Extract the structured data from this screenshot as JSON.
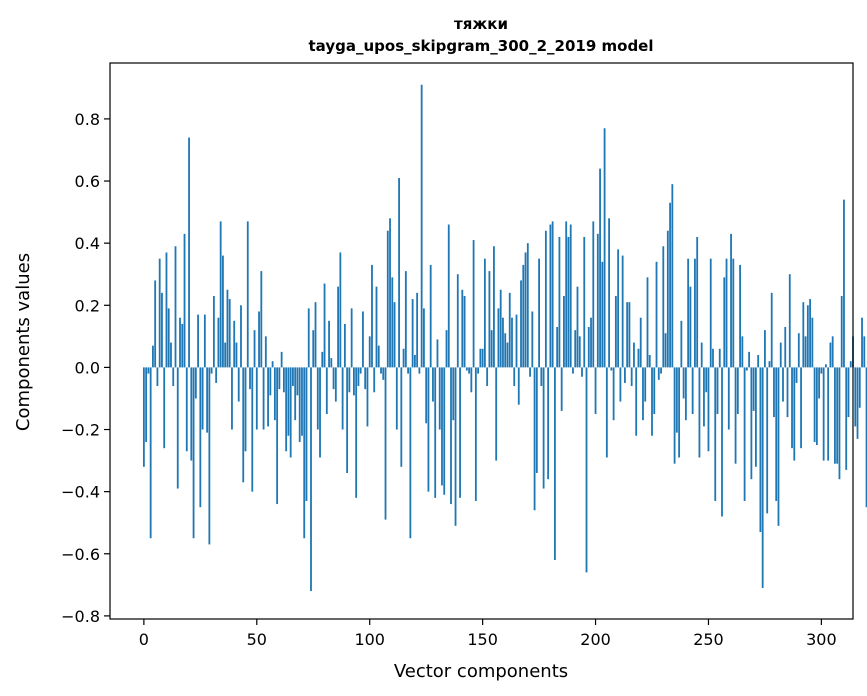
{
  "chart_data": {
    "type": "bar",
    "title": "тяжки",
    "subtitle": "tayga_upos_skipgram_300_2_2019 model",
    "xlabel": "Vector components",
    "ylabel": "Components values",
    "xlim": [
      -15,
      314
    ],
    "ylim": [
      -0.81,
      0.98
    ],
    "xticks": [
      0,
      50,
      100,
      150,
      200,
      250,
      300
    ],
    "yticks": [
      -0.8,
      -0.6,
      -0.4,
      -0.2,
      0.0,
      0.2,
      0.4,
      0.6,
      0.8
    ],
    "xtick_labels": [
      "0",
      "50",
      "100",
      "150",
      "200",
      "250",
      "300"
    ],
    "ytick_labels": [
      "−0.8",
      "−0.6",
      "−0.4",
      "−0.2",
      "0.0",
      "0.2",
      "0.4",
      "0.6",
      "0.8"
    ],
    "grid": false,
    "color": "#1f77b4",
    "values": [
      -0.32,
      -0.24,
      -0.02,
      -0.55,
      0.07,
      0.28,
      -0.06,
      0.35,
      0.24,
      -0.26,
      0.37,
      0.19,
      0.08,
      -0.06,
      0.39,
      -0.39,
      0.16,
      0.14,
      0.43,
      -0.27,
      0.74,
      -0.3,
      -0.55,
      -0.1,
      0.17,
      -0.45,
      -0.2,
      0.17,
      -0.21,
      -0.57,
      -0.02,
      0.23,
      -0.05,
      0.16,
      0.47,
      0.36,
      0.08,
      0.25,
      0.22,
      -0.2,
      0.15,
      0.08,
      -0.11,
      0.2,
      -0.37,
      -0.27,
      0.47,
      -0.07,
      -0.4,
      0.12,
      -0.2,
      0.18,
      0.31,
      -0.2,
      0.1,
      -0.19,
      -0.09,
      0.02,
      -0.17,
      -0.44,
      -0.07,
      0.05,
      -0.08,
      -0.27,
      -0.22,
      -0.29,
      -0.06,
      -0.17,
      -0.09,
      -0.24,
      -0.22,
      -0.55,
      -0.43,
      0.19,
      -0.72,
      0.12,
      0.21,
      -0.2,
      -0.29,
      0.05,
      0.27,
      -0.15,
      0.15,
      0.03,
      -0.07,
      -0.11,
      0.26,
      0.37,
      -0.2,
      0.14,
      -0.34,
      -0.08,
      0.19,
      -0.09,
      -0.42,
      -0.06,
      -0.02,
      0.18,
      -0.07,
      -0.19,
      0.1,
      0.33,
      -0.08,
      0.26,
      0.07,
      -0.02,
      -0.04,
      -0.49,
      0.44,
      0.48,
      0.29,
      0.21,
      -0.2,
      0.61,
      -0.32,
      0.06,
      0.31,
      -0.02,
      -0.55,
      0.22,
      0.04,
      0.24,
      -0.02,
      0.91,
      0.19,
      -0.18,
      -0.4,
      0.33,
      -0.11,
      -0.42,
      0.09,
      -0.2,
      -0.38,
      -0.41,
      0.12,
      0.46,
      -0.44,
      -0.17,
      -0.51,
      0.3,
      -0.42,
      0.25,
      0.23,
      -0.01,
      -0.02,
      -0.08,
      0.41,
      -0.43,
      -0.02,
      0.06,
      0.06,
      0.35,
      -0.06,
      0.31,
      0.12,
      0.39,
      -0.3,
      0.19,
      0.25,
      0.16,
      0.11,
      0.08,
      0.24,
      0.16,
      -0.06,
      0.17,
      -0.12,
      0.28,
      0.33,
      0.37,
      0.4,
      -0.03,
      0.18,
      -0.46,
      -0.34,
      0.35,
      -0.06,
      -0.39,
      0.44,
      -0.36,
      0.46,
      0.47,
      -0.62,
      0.13,
      0.42,
      -0.14,
      0.23,
      0.47,
      0.42,
      0.46,
      -0.02,
      0.12,
      0.26,
      0.1,
      -0.03,
      0.42,
      -0.66,
      0.13,
      0.16,
      0.47,
      -0.15,
      0.43,
      0.64,
      0.34,
      0.77,
      -0.29,
      0.48,
      -0.01,
      -0.17,
      0.23,
      0.38,
      -0.11,
      0.36,
      -0.05,
      0.21,
      0.21,
      -0.06,
      0.08,
      -0.22,
      0.06,
      0.16,
      -0.17,
      -0.11,
      0.29,
      0.04,
      -0.22,
      -0.15,
      0.34,
      -0.04,
      -0.02,
      0.39,
      0.11,
      0.44,
      0.53,
      0.59,
      -0.31,
      -0.21,
      -0.29,
      0.15,
      -0.1,
      -0.17,
      0.35,
      0.26,
      -0.15,
      0.35,
      0.42,
      -0.29,
      0.08,
      -0.19,
      -0.08,
      -0.27,
      0.35,
      0.06,
      -0.43,
      -0.15,
      0.06,
      -0.48,
      0.29,
      0.35,
      -0.2,
      0.43,
      0.35,
      -0.31,
      -0.15,
      0.33,
      0.1,
      -0.43,
      -0.01,
      0.05,
      -0.36,
      -0.14,
      -0.32,
      0.04,
      -0.53,
      -0.71,
      0.12,
      -0.47,
      0.02,
      0.24,
      -0.16,
      -0.43,
      -0.51,
      0.08,
      -0.11,
      0.13,
      -0.16,
      0.3,
      -0.26,
      -0.3,
      -0.05,
      0.11,
      -0.26,
      0.21,
      0.1,
      0.2,
      0.22,
      0.16,
      -0.24,
      -0.25,
      -0.1,
      -0.02,
      -0.3,
      0.01,
      -0.3,
      0.08,
      0.1,
      -0.31,
      -0.31,
      -0.36,
      0.23,
      0.54,
      -0.33,
      -0.16,
      0.02,
      0.1,
      -0.19,
      -0.23,
      -0.13,
      0.16,
      0.1,
      -0.45
    ]
  }
}
